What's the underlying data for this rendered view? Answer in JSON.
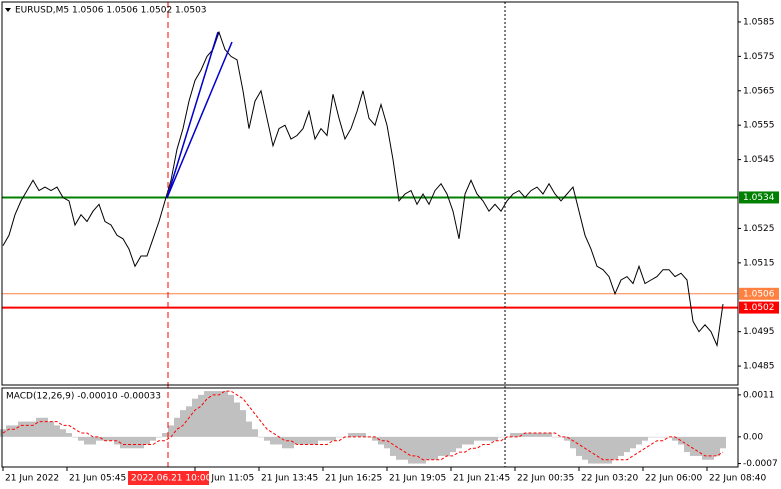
{
  "chart_data": [
    {
      "type": "line",
      "title": "EURUSD,M5  1.0506 1.0506 1.0502 1.0503",
      "color": "#000000",
      "x": [
        0,
        3,
        6,
        9,
        12,
        15,
        18,
        21,
        24,
        27,
        30,
        33,
        36,
        39,
        42,
        45,
        48,
        51,
        54,
        57,
        60,
        63,
        66,
        69,
        72,
        75,
        78,
        81,
        84,
        87,
        90,
        93,
        96,
        99,
        102,
        105,
        108,
        111,
        114,
        117,
        120,
        123,
        126,
        129,
        132,
        135,
        138,
        141,
        144,
        147,
        150,
        153,
        156,
        159,
        162,
        165,
        168,
        171,
        174,
        177,
        180,
        183,
        186,
        189,
        192,
        195,
        198,
        201,
        204,
        207,
        210,
        213,
        216,
        219,
        222,
        225,
        228,
        231,
        234,
        237,
        240,
        243,
        246,
        249,
        252,
        255,
        258,
        261,
        264,
        267,
        270,
        273,
        276,
        279,
        282,
        285,
        288,
        291,
        294,
        297,
        300,
        303,
        306,
        309,
        312,
        315,
        318,
        321,
        324,
        327,
        330,
        333,
        336,
        339,
        342,
        345,
        348,
        351,
        354,
        357,
        360
      ],
      "values": [
        1.052,
        1.0523,
        1.0529,
        1.0533,
        1.0536,
        1.0539,
        1.0536,
        1.0537,
        1.0536,
        1.0537,
        1.0534,
        1.0533,
        1.0526,
        1.0529,
        1.0527,
        1.053,
        1.0532,
        1.0527,
        1.0526,
        1.0523,
        1.0522,
        1.0519,
        1.0514,
        1.0517,
        1.0517,
        1.0522,
        1.0527,
        1.0533,
        1.0539,
        1.0548,
        1.0554,
        1.0562,
        1.0568,
        1.0571,
        1.0575,
        1.0577,
        1.0582,
        1.0577,
        1.0575,
        1.0574,
        1.0565,
        1.0554,
        1.0562,
        1.0565,
        1.0557,
        1.0549,
        1.0554,
        1.0555,
        1.0551,
        1.0552,
        1.0554,
        1.0559,
        1.0551,
        1.0554,
        1.0552,
        1.0564,
        1.0557,
        1.0551,
        1.0554,
        1.0559,
        1.0565,
        1.0557,
        1.0555,
        1.0561,
        1.0555,
        1.0545,
        1.0533,
        1.0535,
        1.0536,
        1.0532,
        1.0535,
        1.0532,
        1.0536,
        1.0538,
        1.0535,
        1.053,
        1.0522,
        1.0535,
        1.0539,
        1.0535,
        1.0533,
        1.053,
        1.0532,
        1.053,
        1.0533,
        1.0535,
        1.0536,
        1.0534,
        1.0536,
        1.0537,
        1.0535,
        1.0538,
        1.0535,
        1.0533,
        1.0535,
        1.0537,
        1.053,
        1.0523,
        1.0519,
        1.0514,
        1.0513,
        1.0511,
        1.0506,
        1.051,
        1.0511,
        1.0509,
        1.0514,
        1.0509,
        1.051,
        1.0511,
        1.0513,
        1.0513,
        1.0511,
        1.0512,
        1.051,
        1.0498,
        1.0495,
        1.0497,
        1.0495,
        1.0491,
        1.0503
      ],
      "xlim": [
        -0.5,
        367.5
      ],
      "xticks": [
        {
          "value": 0,
          "label": "21 Jun 2022"
        },
        {
          "value": 32,
          "label": "21 Jun 05:45"
        },
        {
          "value": 96,
          "label": "21 Jun 11:05"
        },
        {
          "value": 128,
          "label": "21 Jun 13:45"
        },
        {
          "value": 160,
          "label": "21 Jun 16:25"
        },
        {
          "value": 192,
          "label": "21 Jun 19:05"
        },
        {
          "value": 224,
          "label": "21 Jun 21:45"
        },
        {
          "value": 256,
          "label": "22 Jun 00:35"
        },
        {
          "value": 288,
          "label": "22 Jun 03:20"
        },
        {
          "value": 320,
          "label": "22 Jun 06:00"
        },
        {
          "value": 352,
          "label": "22 Jun 08:40"
        }
      ],
      "cursor_label": "2022.06.21 10:00",
      "ylim": [
        1.04795,
        1.05908
      ],
      "yticks": [
        1.0585,
        1.0575,
        1.0565,
        1.0555,
        1.0545,
        1.0525,
        1.0515,
        1.0495,
        1.0485
      ],
      "levels": [
        {
          "value": 1.0534,
          "color": "#008000"
        },
        {
          "value": 1.0506,
          "color": "#ff8040"
        },
        {
          "value": 1.0502,
          "color": "#ff0000"
        }
      ]
    },
    {
      "type": "macd",
      "title": "MACD(12,26,9) -0.00010 -0.00033",
      "series": [
        {
          "style": "histogram",
          "color": "#c0c0c0",
          "values": [
            0.0002,
            0.0003,
            0.0003,
            0.0004,
            0.0004,
            0.0004,
            0.0005,
            0.0005,
            0.0004,
            0.0003,
            0.0002,
            0.0001,
            0,
            -0.0001,
            -0.0002,
            -0.0002,
            -0.0001,
            -0.0001,
            -0.0001,
            -0.0002,
            -0.0003,
            -0.0003,
            -0.0003,
            -0.0003,
            -0.0002,
            -0.0001,
            0,
            0.0001,
            0.0003,
            0.0005,
            0.0007,
            0.0008,
            0.001,
            0.0011,
            0.0012,
            0.0012,
            0.0012,
            0.0012,
            0.0011,
            0.0009,
            0.0007,
            0.0004,
            0.0002,
            0,
            -0.0001,
            -0.0002,
            -0.0002,
            -0.0003,
            -0.0003,
            -0.0002,
            -0.0002,
            -0.0002,
            -0.0002,
            -0.0001,
            -0.0001,
            -0.0001,
            0,
            0,
            0.0001,
            0.0001,
            0.0001,
            0,
            -0.0001,
            -0.0002,
            -0.0003,
            -0.0005,
            -0.0006,
            -0.0006,
            -0.0007,
            -0.0007,
            -0.0007,
            -0.0006,
            -0.0006,
            -0.0005,
            -0.0005,
            -0.0004,
            -0.0003,
            -0.0002,
            -0.0002,
            -0.0001,
            -0.0001,
            -0.0001,
            -0.0001,
            0,
            0,
            0.0001,
            0.0001,
            0.0001,
            0.0001,
            0.0001,
            0.0001,
            0.0001,
            0,
            0,
            -0.0001,
            -0.0003,
            -0.0005,
            -0.0006,
            -0.0007,
            -0.0007,
            -0.0007,
            -0.0007,
            -0.0006,
            -0.0005,
            -0.0004,
            -0.0003,
            -0.0002,
            -0.0001,
            0,
            0,
            0,
            0,
            -0.0001,
            -0.0002,
            -0.0004,
            -0.0005,
            -0.0005,
            -0.0006,
            -0.0006,
            -0.0005,
            -0.0003
          ]
        },
        {
          "style": "dashed",
          "color": "#ff0000",
          "values": [
            0.0001,
            0.0002,
            0.0002,
            0.0003,
            0.0003,
            0.0003,
            0.0004,
            0.0004,
            0.0004,
            0.0004,
            0.0003,
            0.0003,
            0.0002,
            0.0001,
            0.0001,
            0,
            0,
            -0.0001,
            -0.0001,
            -0.0001,
            -0.0002,
            -0.0002,
            -0.0002,
            -0.0002,
            -0.0002,
            -0.0002,
            -0.0001,
            -0.0001,
            0,
            0.0002,
            0.0003,
            0.0005,
            0.0007,
            0.0008,
            0.001,
            0.0011,
            0.0011,
            0.0012,
            0.0012,
            0.0011,
            0.001,
            0.0008,
            0.0006,
            0.0004,
            0.0002,
            0.0001,
            0,
            -0.0001,
            -0.0001,
            -0.0002,
            -0.0002,
            -0.0002,
            -0.0002,
            -0.0002,
            -0.0002,
            -0.0001,
            -0.0001,
            0,
            0,
            0,
            0,
            0,
            0,
            -0.0001,
            -0.0001,
            -0.0002,
            -0.0003,
            -0.0004,
            -0.0005,
            -0.0005,
            -0.0006,
            -0.0006,
            -0.0006,
            -0.0006,
            -0.0005,
            -0.0005,
            -0.0004,
            -0.0004,
            -0.0003,
            -0.0003,
            -0.0002,
            -0.0002,
            -0.0001,
            -0.0001,
            0,
            0,
            0,
            0.0001,
            0.0001,
            0.0001,
            0.0001,
            0.0001,
            0.0001,
            0,
            0,
            -0.0001,
            -0.0002,
            -0.0003,
            -0.0004,
            -0.0005,
            -0.0006,
            -0.0006,
            -0.0006,
            -0.0006,
            -0.0006,
            -0.0005,
            -0.0004,
            -0.0003,
            -0.0002,
            -0.0001,
            -0.0001,
            0,
            0,
            -0.0001,
            -0.0002,
            -0.0003,
            -0.0004,
            -0.0005,
            -0.0005,
            -0.0005,
            -0.0004
          ]
        }
      ],
      "ylim": [
        -0.00079,
        0.00128
      ],
      "yticks": [
        0.0011,
        {
          "value": 0,
          "label": "0.00"
        },
        -0.0007
      ]
    }
  ]
}
